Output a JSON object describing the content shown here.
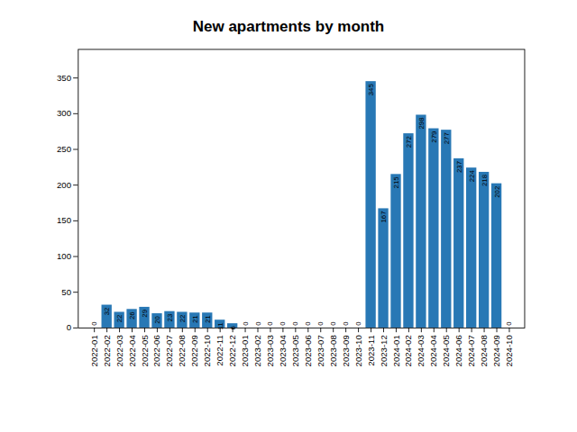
{
  "chart_data": {
    "type": "bar",
    "title": "New apartments by month",
    "categories": [
      "2022-01",
      "2022-02",
      "2022-03",
      "2022-04",
      "2022-05",
      "2022-06",
      "2022-07",
      "2022-08",
      "2022-09",
      "2022-10",
      "2022-11",
      "2022-12",
      "2023-01",
      "2023-02",
      "2023-03",
      "2023-04",
      "2023-05",
      "2023-06",
      "2023-07",
      "2023-08",
      "2023-09",
      "2023-10",
      "2023-11",
      "2023-12",
      "2024-01",
      "2024-02",
      "2024-03",
      "2024-04",
      "2024-05",
      "2024-06",
      "2024-07",
      "2024-08",
      "2024-09",
      "2024-10"
    ],
    "values": [
      0,
      32,
      22,
      26,
      29,
      20,
      23,
      22,
      21,
      21,
      11,
      6,
      0,
      0,
      0,
      0,
      0,
      0,
      0,
      0,
      0,
      0,
      345,
      167,
      215,
      272,
      298,
      279,
      277,
      237,
      224,
      218,
      202,
      0
    ],
    "color": "#2878b5",
    "ylim": [
      0,
      390
    ],
    "yticks": [
      0,
      50,
      100,
      150,
      200,
      250,
      300,
      350
    ],
    "data_labels": true,
    "grid": false
  }
}
